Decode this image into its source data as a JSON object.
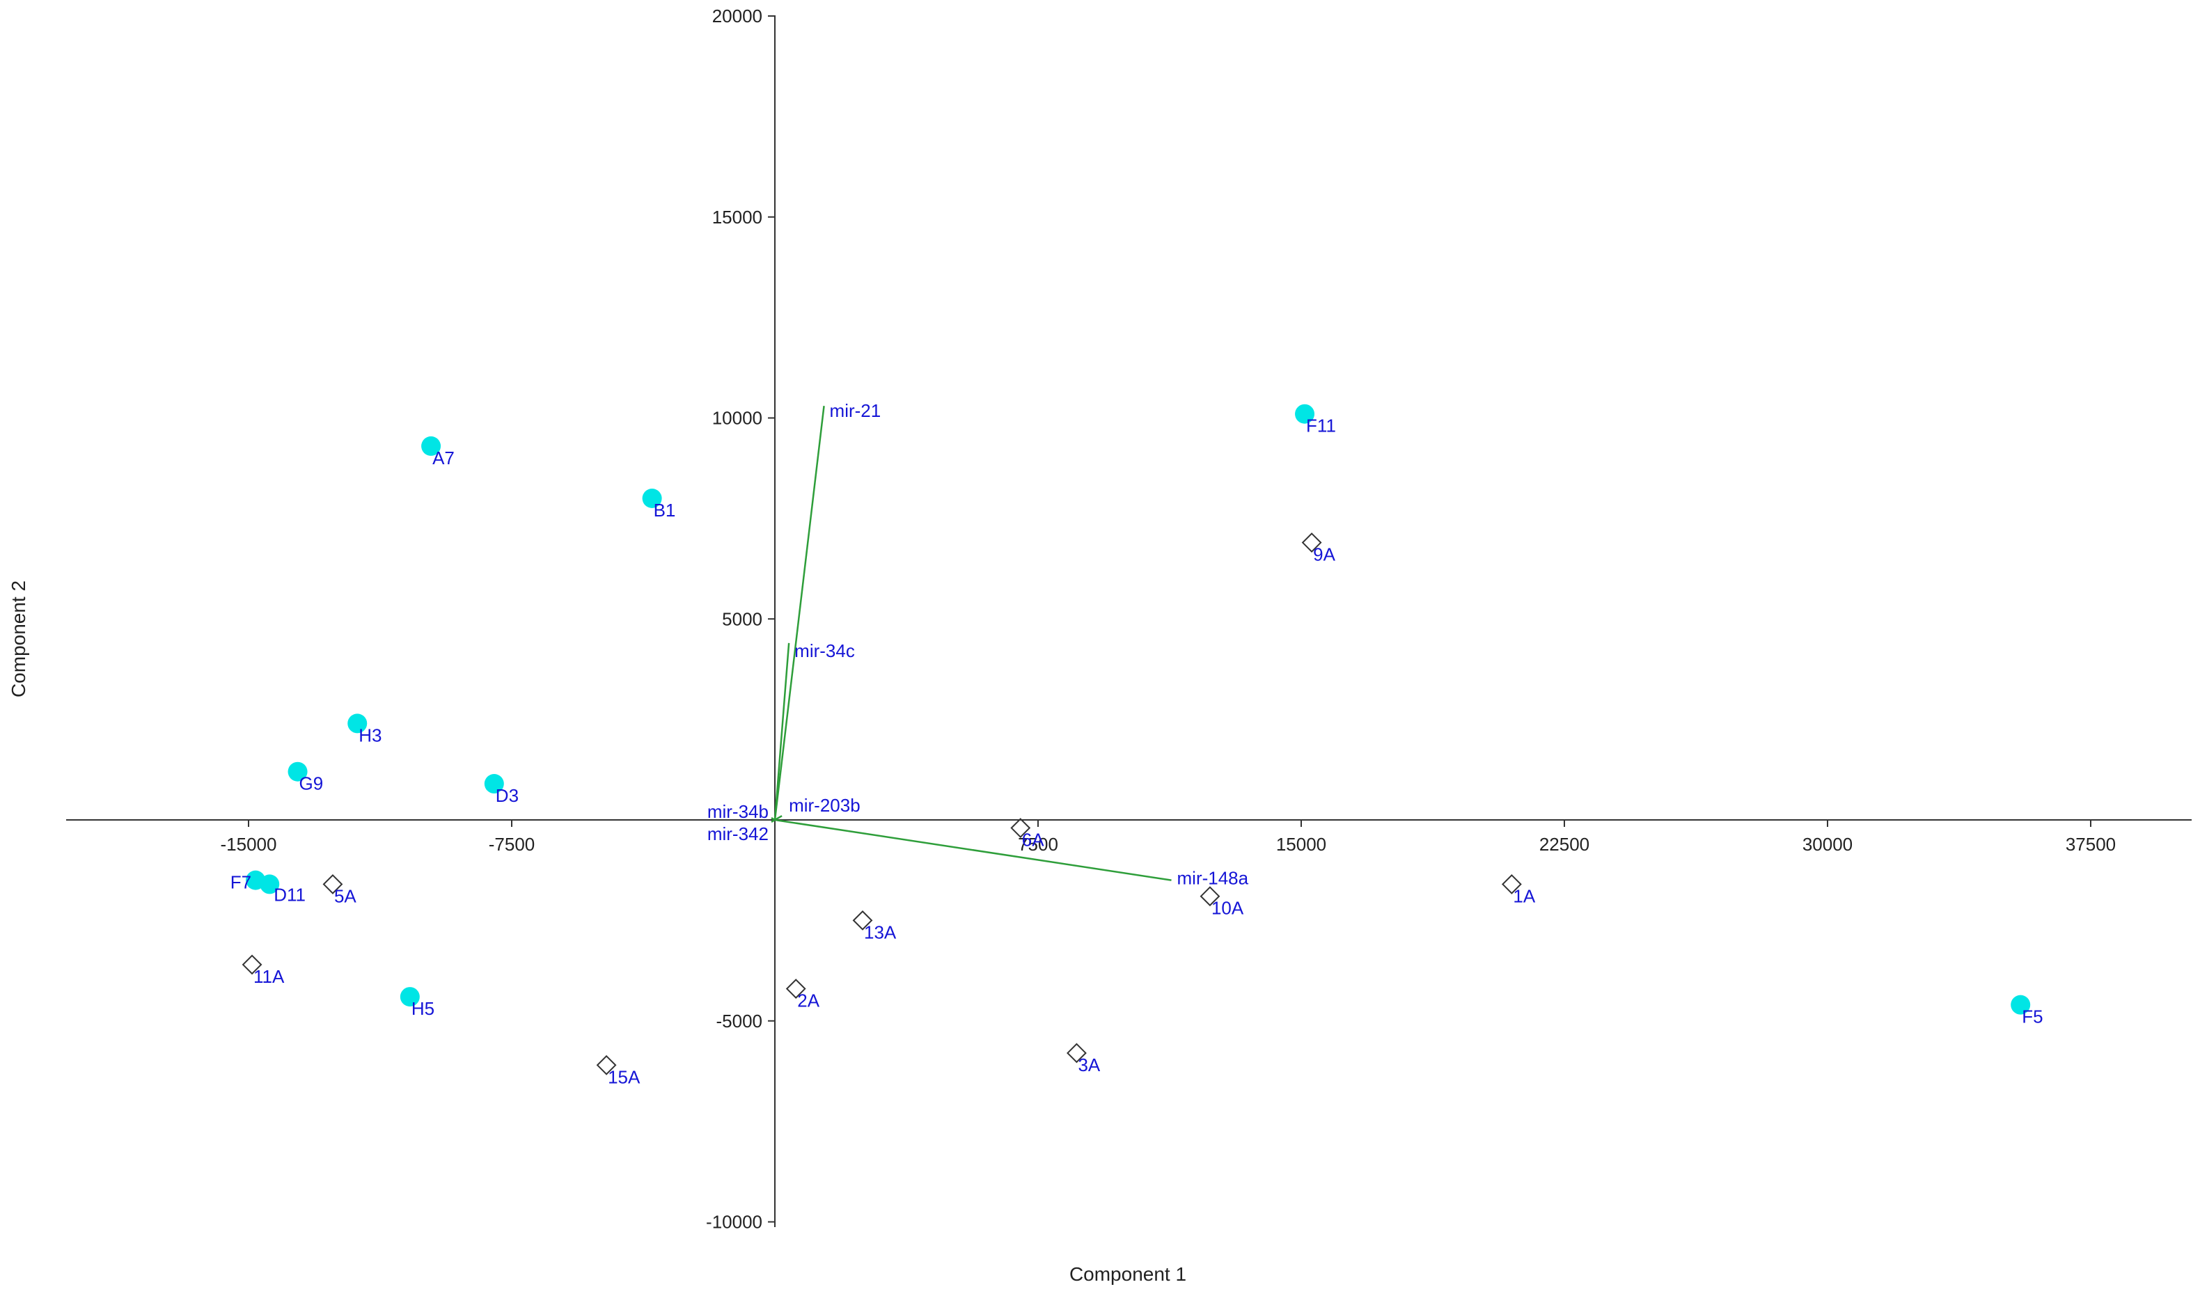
{
  "chart_data": {
    "type": "scatter",
    "title": "",
    "xlabel": "Component 1",
    "ylabel": "Component 2",
    "xlim": [
      -20000,
      40000
    ],
    "ylim": [
      -10000,
      20000
    ],
    "x_ticks": [
      -15000,
      -7500,
      7500,
      15000,
      22500,
      30000,
      37500
    ],
    "y_ticks": [
      -10000,
      -5000,
      5000,
      10000,
      15000,
      20000
    ],
    "x_tick_labels": [
      "-15000",
      "-7500",
      "7500",
      "15000",
      "22500",
      "30000",
      "37500"
    ],
    "y_tick_labels": [
      "-10000",
      "-5000",
      "5000",
      "10000",
      "15000",
      "20000"
    ],
    "grid": false,
    "colors": {
      "circle_fill": "#00e5e5",
      "diamond_stroke": "#333333",
      "label": "#1515d6",
      "vector": "#2e9e3a",
      "axis": "#333333"
    },
    "series": [
      {
        "marker": "circle",
        "points": [
          {
            "label": "A7",
            "x": -9800,
            "y": 9300
          },
          {
            "label": "B1",
            "x": -3500,
            "y": 8000
          },
          {
            "label": "F11",
            "x": 15100,
            "y": 10100
          },
          {
            "label": "H3",
            "x": -11900,
            "y": 2400
          },
          {
            "label": "G9",
            "x": -13600,
            "y": 1200
          },
          {
            "label": "D3",
            "x": -8000,
            "y": 900
          },
          {
            "label": "F7",
            "x": -14800,
            "y": -1500
          },
          {
            "label": "D11",
            "x": -14400,
            "y": -1600
          },
          {
            "label": "H5",
            "x": -10400,
            "y": -4400
          },
          {
            "label": "F5",
            "x": 35500,
            "y": -4600
          }
        ]
      },
      {
        "marker": "diamond",
        "points": [
          {
            "label": "9A",
            "x": 15300,
            "y": 6900
          },
          {
            "label": "5A",
            "x": -12600,
            "y": -1600
          },
          {
            "label": "11A",
            "x": -14900,
            "y": -3600
          },
          {
            "label": "15A",
            "x": -4800,
            "y": -6100
          },
          {
            "label": "6A",
            "x": 7000,
            "y": -200
          },
          {
            "label": "13A",
            "x": 2500,
            "y": -2500
          },
          {
            "label": "2A",
            "x": 600,
            "y": -4200
          },
          {
            "label": "3A",
            "x": 8600,
            "y": -5800
          },
          {
            "label": "10A",
            "x": 12400,
            "y": -1900
          },
          {
            "label": "1A",
            "x": 21000,
            "y": -1600
          }
        ]
      }
    ],
    "vectors": [
      {
        "label": "mir-21",
        "x": 1400,
        "y": 10300
      },
      {
        "label": "mir-34c",
        "x": 400,
        "y": 4400
      },
      {
        "label": "mir-203b",
        "x": 200,
        "y": 100
      },
      {
        "label": "mir-34b",
        "x": -100,
        "y": 50
      },
      {
        "label": "mir-342",
        "x": -100,
        "y": -50
      },
      {
        "label": "mir-148a",
        "x": 11300,
        "y": -1500
      }
    ]
  }
}
